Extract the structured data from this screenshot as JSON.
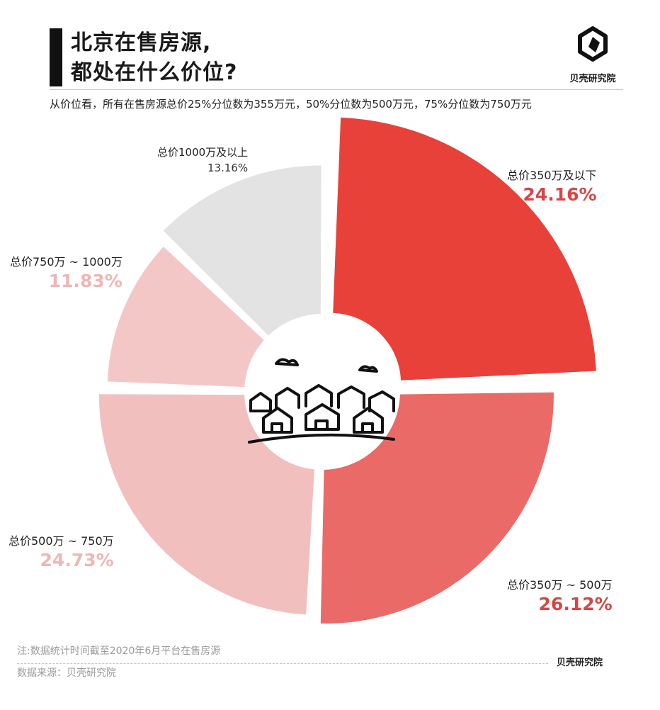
{
  "header": {
    "title_line1": "北京在售房源,",
    "title_line2": "都处在什么价位?",
    "brand": "贝壳研究院",
    "subtitle": "从价位看，所有在售房源总价25%分位数为355万元，50%分位数为500万元，75%分位数为750万元"
  },
  "chart_data": {
    "type": "pie",
    "variant": "donut-exploded",
    "categories": [
      "总价350万及以下",
      "总价350万 ~ 500万",
      "总价500万 ~ 750万",
      "总价750万 ~ 1000万",
      "总价1000万及以上"
    ],
    "values": [
      24.16,
      26.12,
      24.73,
      11.83,
      13.16
    ],
    "value_labels": [
      "24.16%",
      "26.12%",
      "24.73%",
      "11.83%",
      "13.16%"
    ],
    "colors": [
      "#e8413a",
      "#e96a66",
      "#f2bfbf",
      "#f4c7c7",
      "#e3e3e3"
    ],
    "label_colors": [
      "#d94545",
      "#d94545",
      "#f0b5b5",
      "#f0b5b5",
      "#333333"
    ]
  },
  "footer": {
    "note": "注:数据统计时间截至2020年6月平台在售房源",
    "source": "数据来源：贝壳研究院",
    "brand": "贝壳研究院"
  }
}
